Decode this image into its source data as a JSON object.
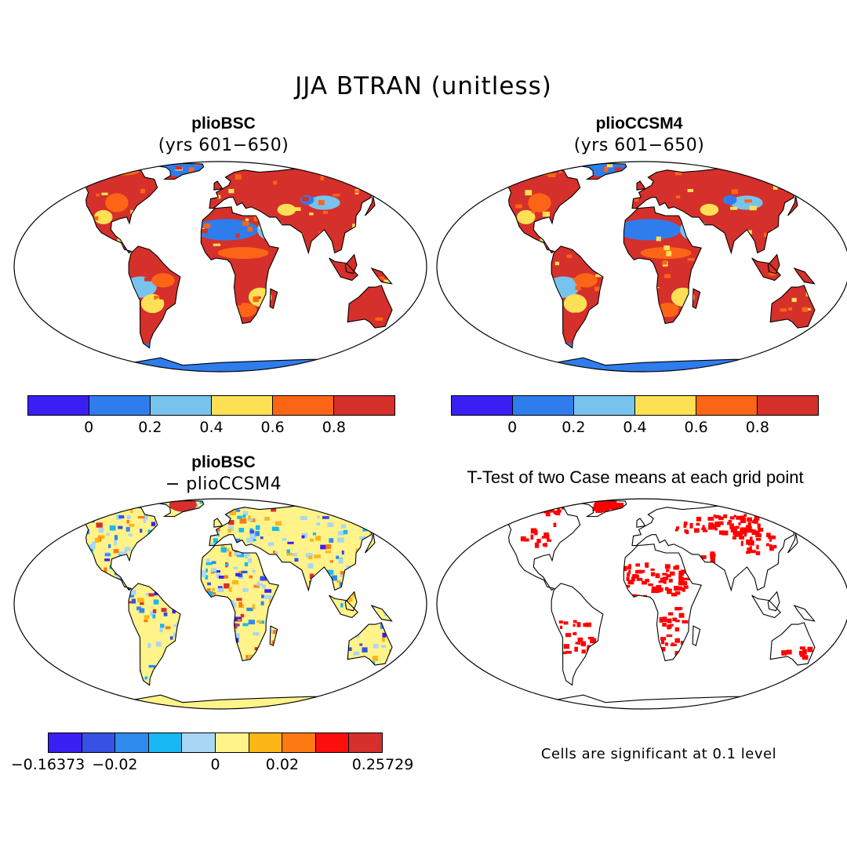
{
  "figure": {
    "title": "JJA BTRAN (unitless)"
  },
  "panels": [
    {
      "id": "bsc",
      "title": "plioBSC",
      "subtitle": "(yrs 601−650)",
      "map_style": "absolute"
    },
    {
      "id": "ccsm4",
      "title": "plioCCSM4",
      "subtitle": "(yrs 601−650)",
      "map_style": "absolute"
    },
    {
      "id": "diff",
      "title": "plioBSC",
      "subtitle": "− plioCCSM4",
      "map_style": "difference"
    },
    {
      "id": "ttest",
      "title": "T-Test of two Case means at each grid point",
      "map_style": "significance"
    }
  ],
  "colorbars": {
    "absolute": {
      "colors": [
        "#3a1ff2",
        "#2f7ded",
        "#78c3ee",
        "#fde054",
        "#fc6515",
        "#d5302b"
      ],
      "labels": [
        "0",
        "0.2",
        "0.4",
        "0.6",
        "0.8"
      ]
    },
    "difference": {
      "colors": [
        "#3a1ff2",
        "#3651e3",
        "#2f8aee",
        "#18b8f5",
        "#a8d6f5",
        "#fff38a",
        "#fcb617",
        "#fd7a12",
        "#fb0f0c",
        "#d5302b"
      ],
      "labels": [
        "−0.16373",
        "−0.02",
        "0",
        "0.02",
        "0.25729"
      ]
    }
  },
  "significance": {
    "note": "Cells are significant at 0.1 level",
    "color": "#ff0000"
  },
  "map_colors": {
    "ocean": "#ffffff",
    "land_dry_high": "#d5302b",
    "land_orange": "#fc6515",
    "land_yellow": "#fde054",
    "desert_blue": "#2f7ded",
    "light_blue": "#78c3ee",
    "antarctica_absolute": "#2f7ded",
    "antarctica_difference": "#fff38a",
    "coastline": "#000000"
  }
}
